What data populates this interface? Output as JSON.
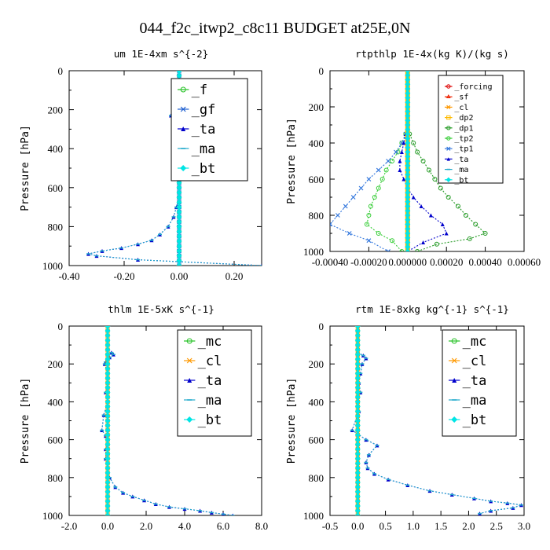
{
  "figure_title": "044_f2c_itwp2_c8c11  BUDGET at25E,0N",
  "colors": {
    "_f": "#22c022",
    "_gf": "#1e5fd0",
    "_ta": "#0000cc",
    "_ma": "#22aacc",
    "_bt": "#00e5e5",
    "_forcing": "#dd0000",
    "_sf": "#ee2200",
    "_cl": "#ff9900",
    "_dp2": "#ffbb00",
    "_dp1": "#229922",
    "_tp2": "#33cc33",
    "_tp1": "#3377dd",
    "_mc": "#22c022"
  },
  "chart_data": [
    {
      "id": "um",
      "type": "line",
      "title": "um  1E-4xm s^{-2}",
      "ylabel": "Pressure [hPa]",
      "xlim": [
        -0.4,
        0.3
      ],
      "ylim": [
        1000,
        0
      ],
      "xticks": [
        -0.4,
        -0.2,
        0.0,
        0.2
      ],
      "xtick_labels": [
        "-0.40",
        "-0.20",
        "0.00",
        "0.20"
      ],
      "yticks": [
        0,
        200,
        400,
        600,
        800,
        1000
      ],
      "legend_fontsize": 17,
      "legend_spacing": 25,
      "series": [
        {
          "name": "_f",
          "x": [
            0.0,
            0.0,
            0.0,
            0.0,
            0.0,
            0.0,
            0.0,
            0.0,
            0.0
          ],
          "y": [
            0,
            125,
            250,
            375,
            500,
            625,
            750,
            875,
            1000
          ]
        },
        {
          "name": "_gf",
          "x": [
            0.0,
            0.0,
            0.0,
            0.0,
            0.0,
            0.0,
            0.0,
            0.0
          ],
          "y": [
            0,
            150,
            300,
            450,
            600,
            750,
            900,
            1000
          ]
        },
        {
          "name": "_ta",
          "x": [
            0.0,
            0.01,
            0.04,
            0.03,
            0.0,
            -0.02,
            -0.03,
            -0.02,
            0.0,
            0.0,
            0.01,
            0.0,
            0.01,
            0.0,
            0.01,
            0.0,
            0.0,
            -0.01,
            -0.02,
            -0.04,
            -0.07,
            -0.1,
            -0.15,
            -0.21,
            -0.28,
            -0.33,
            -0.3,
            -0.15,
            0.3
          ],
          "y": [
            80,
            110,
            140,
            170,
            200,
            225,
            230,
            210,
            260,
            300,
            350,
            400,
            450,
            500,
            550,
            600,
            650,
            700,
            750,
            800,
            840,
            870,
            890,
            910,
            925,
            940,
            950,
            970,
            1000
          ]
        },
        {
          "name": "_ma",
          "x": [
            0.0,
            0.01,
            0.04,
            0.03,
            0.0,
            -0.02,
            -0.03,
            -0.02,
            0.0,
            0.0,
            0.01,
            0.0,
            0.01,
            0.0,
            0.01,
            0.0,
            0.0,
            -0.01,
            -0.02,
            -0.04,
            -0.07,
            -0.1,
            -0.15,
            -0.21,
            -0.28,
            -0.33,
            -0.3,
            -0.15,
            0.3
          ],
          "y": [
            80,
            110,
            140,
            170,
            200,
            225,
            230,
            210,
            260,
            300,
            350,
            400,
            450,
            500,
            550,
            600,
            650,
            700,
            750,
            800,
            840,
            870,
            890,
            910,
            925,
            940,
            950,
            970,
            1000
          ]
        },
        {
          "name": "_bt",
          "x": [
            0.0,
            0.0,
            0.0,
            0.0,
            0.0,
            0.0,
            0.0,
            0.0,
            0.0
          ],
          "y": [
            0,
            125,
            250,
            375,
            500,
            625,
            750,
            875,
            1000
          ]
        }
      ]
    },
    {
      "id": "rtpthlp",
      "type": "line",
      "title": "rtpthlp  1E-4x(kg K)/(kg s)",
      "ylabel": "Pressure [hPa]",
      "xlim": [
        -0.0004,
        0.0006
      ],
      "ylim": [
        1000,
        0
      ],
      "xticks": [
        -0.0004,
        -0.0002,
        0.0,
        0.0002,
        0.0004,
        0.0006
      ],
      "xtick_labels": [
        "-0.00040",
        "-0.00020",
        "0.000000",
        "0.00020",
        "0.00040",
        "0.00060"
      ],
      "xtick_anchor": "end",
      "yticks": [
        0,
        200,
        400,
        600,
        800,
        1000
      ],
      "legend_fontsize": 10,
      "legend_spacing": 13.2,
      "series": [
        {
          "name": "_forcing",
          "x": [
            0.0,
            0.0,
            0.0,
            0.0,
            0.0,
            0.0,
            0.0,
            0.0,
            0.0
          ],
          "y": [
            0,
            125,
            250,
            375,
            500,
            625,
            750,
            875,
            1000
          ]
        },
        {
          "name": "_sf",
          "x": [
            0.0,
            0.0,
            0.0,
            0.0,
            0.0,
            0.0,
            0.0,
            0.0,
            0.0
          ],
          "y": [
            0,
            125,
            250,
            375,
            500,
            625,
            750,
            875,
            1000
          ]
        },
        {
          "name": "_cl",
          "x": [
            0.0,
            0.0,
            0.0,
            0.0,
            0.0,
            0.0,
            0.0,
            0.0,
            0.0
          ],
          "y": [
            0,
            125,
            250,
            375,
            500,
            625,
            750,
            875,
            1000
          ]
        },
        {
          "name": "_dp2",
          "x": [
            0.0,
            0.0,
            0.0,
            0.0,
            0.0,
            0.0,
            0.0,
            0.0,
            0.0
          ],
          "y": [
            0,
            125,
            250,
            375,
            500,
            625,
            750,
            875,
            1000
          ]
        },
        {
          "name": "_dp1",
          "x": [
            0.0,
            1e-05,
            3e-05,
            5e-05,
            8e-05,
            0.00011,
            0.00014,
            0.00017,
            0.00021,
            0.00026,
            0.0003,
            0.00035,
            0.0004,
            0.00032,
            0.00015,
            5e-05
          ],
          "y": [
            300,
            350,
            400,
            450,
            500,
            550,
            600,
            650,
            700,
            750,
            800,
            850,
            900,
            930,
            960,
            1000
          ]
        },
        {
          "name": "_tp2",
          "x": [
            0.0,
            -1e-05,
            -3e-05,
            -5e-05,
            -8e-05,
            -0.00011,
            -0.00013,
            -0.00015,
            -0.00017,
            -0.00019,
            -0.0002,
            -0.00021,
            -0.00015,
            -8e-05,
            -3e-05
          ],
          "y": [
            300,
            350,
            400,
            450,
            500,
            550,
            600,
            650,
            700,
            750,
            800,
            850,
            900,
            940,
            1000
          ]
        },
        {
          "name": "_tp1",
          "x": [
            0.0,
            -1e-05,
            -3e-05,
            -6e-05,
            -0.0001,
            -0.00015,
            -0.0002,
            -0.00024,
            -0.00028,
            -0.00032,
            -0.00036,
            -0.0004,
            -0.0003,
            -0.0002,
            -0.0001
          ],
          "y": [
            300,
            350,
            400,
            450,
            500,
            550,
            600,
            650,
            700,
            750,
            800,
            850,
            900,
            940,
            1000
          ]
        },
        {
          "name": "_ta",
          "x": [
            0.0,
            -1e-05,
            -2e-05,
            -3e-05,
            -4e-05,
            -4e-05,
            -2e-05,
            0.0,
            3e-05,
            7e-05,
            0.00012,
            0.00018,
            0.0002,
            8e-05,
            0.0
          ],
          "y": [
            300,
            350,
            400,
            450,
            500,
            550,
            600,
            650,
            700,
            750,
            800,
            850,
            900,
            950,
            1000
          ]
        },
        {
          "name": "_ma",
          "x": [
            0.0,
            0.0,
            0.0,
            0.0,
            0.0,
            0.0,
            0.0,
            0.0,
            0.0
          ],
          "y": [
            0,
            125,
            250,
            375,
            500,
            625,
            750,
            875,
            1000
          ]
        },
        {
          "name": "_bt",
          "x": [
            0.0,
            0.0,
            0.0,
            0.0,
            0.0,
            0.0,
            0.0,
            0.0,
            0.0
          ],
          "y": [
            0,
            125,
            250,
            375,
            500,
            625,
            750,
            875,
            1000
          ]
        }
      ]
    },
    {
      "id": "thlm",
      "type": "line",
      "title": "thlm  1E-5xK s^{-1}",
      "ylabel": "Pressure [hPa]",
      "xlim": [
        -2.0,
        8.0
      ],
      "ylim": [
        1000,
        0
      ],
      "xticks": [
        -2.0,
        0.0,
        2.0,
        4.0,
        6.0,
        8.0
      ],
      "xtick_labels": [
        "-2.0",
        "0.0",
        "2.0",
        "4.0",
        "6.0",
        "8.0"
      ],
      "yticks": [
        0,
        200,
        400,
        600,
        800,
        1000
      ],
      "legend_fontsize": 17,
      "legend_spacing": 25,
      "series": [
        {
          "name": "_mc",
          "x": [
            0.0,
            0.0,
            0.0,
            0.0,
            0.0,
            0.0,
            0.0,
            0.0,
            0.0
          ],
          "y": [
            0,
            125,
            250,
            375,
            500,
            625,
            750,
            875,
            1000
          ]
        },
        {
          "name": "_cl",
          "x": [
            0.0,
            0.0,
            0.0,
            0.0,
            0.0,
            0.0,
            0.0,
            0.0,
            0.0
          ],
          "y": [
            0,
            125,
            250,
            375,
            500,
            625,
            750,
            875,
            1000
          ]
        },
        {
          "name": "_ta",
          "x": [
            0.2,
            0.3,
            0.1,
            -0.1,
            -0.15,
            0.0,
            0.0,
            -0.1,
            0.0,
            -0.2,
            -0.3,
            -0.1,
            0.0,
            -0.1,
            -0.1,
            0.0,
            0.1,
            0.4,
            0.8,
            1.3,
            1.9,
            2.5,
            3.2,
            4.0,
            4.8,
            5.4,
            6.0,
            6.5
          ],
          "y": [
            140,
            150,
            165,
            190,
            200,
            250,
            300,
            350,
            400,
            470,
            550,
            580,
            600,
            650,
            700,
            750,
            800,
            850,
            880,
            900,
            920,
            940,
            955,
            965,
            975,
            985,
            993,
            1000
          ]
        },
        {
          "name": "_ma",
          "x": [
            0.2,
            0.3,
            0.1,
            -0.1,
            -0.15,
            0.0,
            0.0,
            -0.1,
            0.0,
            -0.2,
            -0.3,
            -0.1,
            0.0,
            -0.1,
            -0.1,
            0.0,
            0.1,
            0.4,
            0.8,
            1.3,
            1.9,
            2.5,
            3.2,
            4.0,
            4.8,
            5.4,
            6.0,
            6.5
          ],
          "y": [
            140,
            150,
            165,
            190,
            200,
            250,
            300,
            350,
            400,
            470,
            550,
            580,
            600,
            650,
            700,
            750,
            800,
            850,
            880,
            900,
            920,
            940,
            955,
            965,
            975,
            985,
            993,
            1000
          ]
        },
        {
          "name": "_bt",
          "x": [
            0.0,
            0.0,
            0.0,
            0.0,
            0.0,
            0.0,
            0.0,
            0.0,
            0.0
          ],
          "y": [
            0,
            125,
            250,
            375,
            500,
            625,
            750,
            875,
            1000
          ]
        }
      ]
    },
    {
      "id": "rtm",
      "type": "line",
      "title": "rtm  1E-8xkg kg^{-1} s^{-1}",
      "ylabel": "Pressure [hPa]",
      "xlim": [
        -0.5,
        3.0
      ],
      "ylim": [
        1000,
        0
      ],
      "xticks": [
        -0.5,
        0.0,
        0.5,
        1.0,
        1.5,
        2.0,
        2.5,
        3.0
      ],
      "xtick_labels": [
        "-0.5",
        "0.0",
        "0.5",
        "1.0",
        "1.5",
        "2.0",
        "2.5",
        "3.0"
      ],
      "yticks": [
        0,
        200,
        400,
        600,
        800,
        1000
      ],
      "legend_fontsize": 17,
      "legend_spacing": 25,
      "series": [
        {
          "name": "_mc",
          "x": [
            0.0,
            0.0,
            0.0,
            0.0,
            0.0,
            0.0,
            0.0,
            0.0,
            0.0
          ],
          "y": [
            0,
            125,
            250,
            375,
            500,
            625,
            750,
            875,
            1000
          ]
        },
        {
          "name": "_cl",
          "x": [
            0.0,
            0.0,
            0.0,
            0.0,
            0.0,
            0.0,
            0.0,
            0.0,
            0.0
          ],
          "y": [
            0,
            125,
            250,
            375,
            500,
            625,
            750,
            875,
            1000
          ]
        },
        {
          "name": "_ta",
          "x": [
            0.0,
            0.1,
            0.15,
            0.08,
            0.05,
            0.02,
            0.05,
            0.0,
            0.02,
            -0.1,
            0.15,
            0.35,
            0.2,
            0.15,
            0.18,
            0.3,
            0.55,
            0.9,
            1.3,
            1.7,
            2.1,
            2.4,
            2.7,
            2.95,
            2.8,
            2.4,
            2.2
          ],
          "y": [
            140,
            155,
            170,
            200,
            250,
            300,
            350,
            400,
            450,
            550,
            600,
            630,
            680,
            720,
            750,
            780,
            810,
            840,
            870,
            890,
            910,
            925,
            935,
            945,
            960,
            975,
            990
          ]
        },
        {
          "name": "_ma",
          "x": [
            0.0,
            0.1,
            0.15,
            0.08,
            0.05,
            0.02,
            0.05,
            0.0,
            0.02,
            -0.1,
            0.15,
            0.35,
            0.2,
            0.15,
            0.18,
            0.3,
            0.55,
            0.9,
            1.3,
            1.7,
            2.1,
            2.4,
            2.7,
            2.95,
            2.8,
            2.4,
            2.2
          ],
          "y": [
            140,
            155,
            170,
            200,
            250,
            300,
            350,
            400,
            450,
            550,
            600,
            630,
            680,
            720,
            750,
            780,
            810,
            840,
            870,
            890,
            910,
            925,
            935,
            945,
            960,
            975,
            990
          ]
        },
        {
          "name": "_bt",
          "x": [
            0.0,
            0.0,
            0.0,
            0.0,
            0.0,
            0.0,
            0.0,
            0.0,
            0.0
          ],
          "y": [
            0,
            125,
            250,
            375,
            500,
            625,
            750,
            875,
            1000
          ]
        }
      ]
    }
  ]
}
